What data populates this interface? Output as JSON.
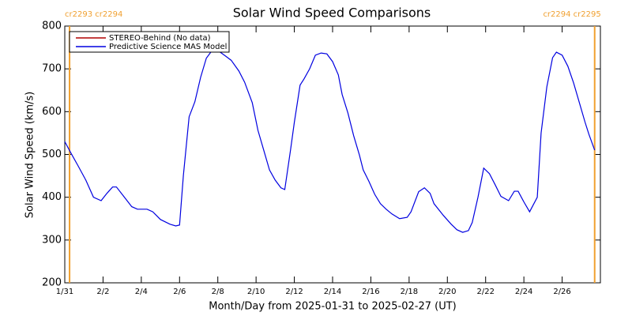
{
  "chart_data": {
    "type": "line",
    "title": "Solar Wind Speed Comparisons",
    "xlabel": "Month/Day from 2025-01-31 to 2025-02-27 (UT)",
    "ylabel": "Solar Wind Speed (km/s)",
    "xlim": [
      0,
      28
    ],
    "ylim": [
      200,
      800
    ],
    "xticks": [
      {
        "value": 0,
        "label": "1/31"
      },
      {
        "value": 2,
        "label": "2/2"
      },
      {
        "value": 4,
        "label": "2/4"
      },
      {
        "value": 6,
        "label": "2/6"
      },
      {
        "value": 8,
        "label": "2/8"
      },
      {
        "value": 10,
        "label": "2/10"
      },
      {
        "value": 12,
        "label": "2/12"
      },
      {
        "value": 14,
        "label": "2/14"
      },
      {
        "value": 16,
        "label": "2/16"
      },
      {
        "value": 18,
        "label": "2/18"
      },
      {
        "value": 20,
        "label": "2/20"
      },
      {
        "value": 22,
        "label": "2/22"
      },
      {
        "value": 24,
        "label": "2/24"
      },
      {
        "value": 26,
        "label": "2/26"
      }
    ],
    "yticks": [
      200,
      300,
      400,
      500,
      600,
      700,
      800
    ],
    "legend": "upper left",
    "series": [
      {
        "name": "STEREO-Behind (No data)",
        "color": "#b00000",
        "x": [],
        "values": []
      },
      {
        "name": "Predictive Science MAS Model",
        "color": "#0000e0",
        "x": [
          0,
          0.3,
          0.7,
          1.1,
          1.5,
          1.9,
          2.2,
          2.5,
          2.7,
          3.1,
          3.5,
          3.8,
          4.3,
          4.6,
          5.0,
          5.5,
          5.8,
          6.0,
          6.2,
          6.5,
          6.8,
          7.1,
          7.4,
          7.7,
          8.0,
          8.4,
          8.7,
          9.1,
          9.4,
          9.8,
          10.1,
          10.4,
          10.7,
          11.0,
          11.3,
          11.5,
          11.8,
          12.0,
          12.3,
          12.5,
          12.8,
          13.1,
          13.4,
          13.7,
          14.0,
          14.3,
          14.5,
          14.8,
          15.1,
          15.4,
          15.6,
          15.9,
          16.2,
          16.5,
          16.8,
          17.1,
          17.5,
          17.9,
          18.1,
          18.5,
          18.8,
          19.1,
          19.3,
          19.8,
          20.2,
          20.5,
          20.8,
          21.1,
          21.3,
          21.6,
          21.9,
          22.2,
          22.5,
          22.8,
          23.2,
          23.5,
          23.7,
          24.0,
          24.3,
          24.7,
          24.9,
          25.2,
          25.5,
          25.7,
          26.0,
          26.3,
          26.6,
          26.9,
          27.2,
          27.4,
          27.7
        ],
        "values": [
          530,
          505,
          473,
          440,
          400,
          392,
          409,
          424,
          424,
          401,
          378,
          372,
          372,
          366,
          348,
          337,
          333,
          335,
          451,
          588,
          623,
          680,
          725,
          743,
          743,
          730,
          720,
          695,
          669,
          621,
          556,
          510,
          464,
          440,
          422,
          418,
          510,
          575,
          662,
          676,
          700,
          732,
          737,
          735,
          717,
          686,
          640,
          597,
          544,
          499,
          464,
          437,
          407,
          385,
          372,
          361,
          350,
          353,
          366,
          413,
          422,
          409,
          385,
          357,
          337,
          324,
          318,
          322,
          341,
          400,
          468,
          455,
          429,
          402,
          392,
          414,
          414,
          389,
          366,
          400,
          550,
          658,
          726,
          739,
          732,
          706,
          667,
          621,
          575,
          547,
          510
        ]
      }
    ],
    "markers": [
      {
        "x": 0.25,
        "label": "cr2293 cr2294",
        "color": "#f0a030"
      },
      {
        "x": 27.7,
        "label": "cr2294 cr2295",
        "color": "#f0a030"
      }
    ]
  }
}
